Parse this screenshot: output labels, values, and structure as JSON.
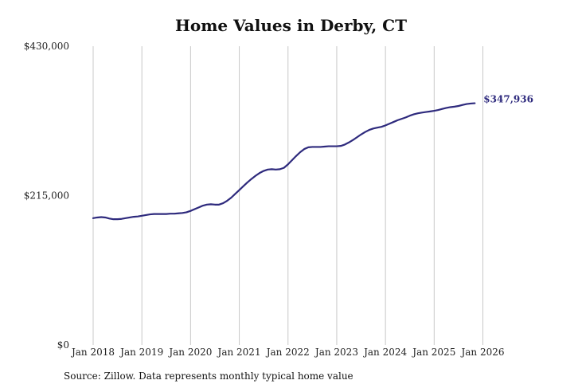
{
  "chart_data": {
    "type": "line",
    "title": "Home Values in Derby, CT",
    "xlabel": "",
    "ylabel": "",
    "source": "Source: Zillow. Data represents monthly typical home value",
    "x_start": "2018-01",
    "xlim": [
      "2018-01",
      "2026-06"
    ],
    "ylim": [
      0,
      430000
    ],
    "y_ticks": [
      0,
      215000,
      430000
    ],
    "y_tick_labels": [
      "$0",
      "$215,000",
      "$430,000"
    ],
    "x_ticks": [
      "2018-01",
      "2019-01",
      "2020-01",
      "2021-01",
      "2022-01",
      "2023-01",
      "2024-01",
      "2025-01",
      "2026-01"
    ],
    "x_tick_labels": [
      "Jan 2018",
      "Jan 2019",
      "Jan 2020",
      "Jan 2021",
      "Jan 2022",
      "Jan 2023",
      "Jan 2024",
      "Jan 2025",
      "Jan 2026"
    ],
    "grid": {
      "vertical": true,
      "horizontal": false
    },
    "line_color": "#2e2a7d",
    "end_label": "$347,936",
    "series": [
      {
        "name": "",
        "values": [
          182500,
          183500,
          184000,
          183500,
          182000,
          181000,
          181000,
          181500,
          182500,
          183500,
          184500,
          185000,
          186000,
          187000,
          188000,
          188500,
          188500,
          188500,
          188500,
          189000,
          189000,
          189500,
          190000,
          191000,
          193000,
          195500,
          198000,
          200500,
          202000,
          202500,
          202000,
          202000,
          204000,
          207500,
          212000,
          217500,
          223000,
          228500,
          234000,
          239000,
          243500,
          247500,
          250500,
          252500,
          253000,
          252500,
          253000,
          255000,
          260000,
          266000,
          272000,
          277500,
          282000,
          284500,
          285000,
          285000,
          285000,
          285500,
          286000,
          286000,
          286000,
          286500,
          288500,
          291500,
          295000,
          299000,
          303000,
          306500,
          309500,
          311500,
          312800,
          314000,
          316000,
          318500,
          321000,
          323500,
          325500,
          327500,
          330000,
          332000,
          333500,
          334500,
          335300,
          336100,
          337000,
          338200,
          339800,
          341200,
          342300,
          343000,
          344000,
          345500,
          346800,
          347500,
          347936
        ]
      }
    ]
  }
}
